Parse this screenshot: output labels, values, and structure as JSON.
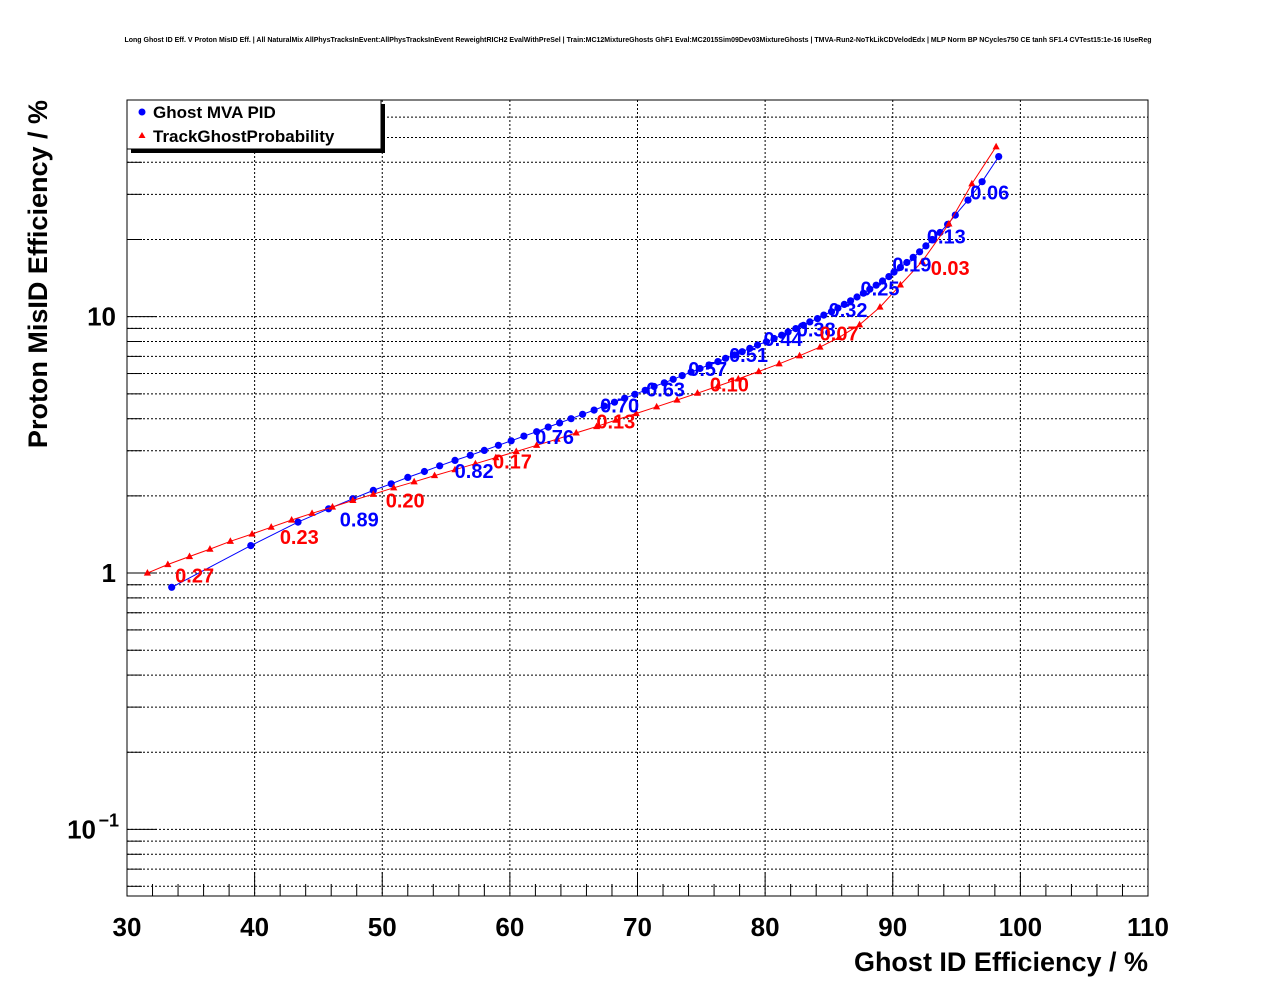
{
  "page": {
    "title": "Long Ghost ID Eff. V Proton MisID Eff. | All NaturalMix AllPhysTracksInEvent:AllPhysTracksInEvent ReweightRICH2 EvalWithPreSel | Train:MC12MixtureGhosts GhF1 Eval:MC2015Sim09Dev03MixtureGhosts | TMVA-Run2-NoTkLikCDVelodEdx | MLP Norm BP NCycles750 CE tanh SF1.4 CVTest15:1e-16 !UseReg"
  },
  "chart_data": {
    "type": "scatter",
    "title": "Long Ghost ID Eff. V Proton MisID Eff. | All NaturalMix AllPhysTracksInEvent:AllPhysTracksInEvent ReweightRICH2 EvalWithPreSel | Train:MC12MixtureGhosts GhF1 Eval:MC2015Sim09Dev03MixtureGhosts | TMVA-Run2-NoTkLikCDVelodEdx | MLP Norm BP NCycles750 CE tanh SF1.4 CVTest15:1e-16 !UseReg",
    "xlabel": "Ghost ID Efficiency / %",
    "ylabel": "Proton MisID Efficiency / %",
    "xlim": [
      30,
      110
    ],
    "ylim": [
      0.055,
      70
    ],
    "yscale": "log",
    "grid": true,
    "legend_position": "top-left",
    "x_ticks": [
      "30",
      "40",
      "50",
      "60",
      "70",
      "80",
      "90",
      "100",
      "110"
    ],
    "y_ticks": [
      {
        "base": "10",
        "exp": "−1"
      },
      {
        "base": "1",
        "exp": ""
      },
      {
        "base": "10",
        "exp": ""
      }
    ],
    "series": [
      {
        "name": "Ghost MVA PID",
        "color": "#0000ff",
        "marker": "circle",
        "x": [
          33.5,
          39.7,
          43.4,
          45.8,
          47.7,
          49.3,
          50.7,
          52.0,
          53.3,
          54.5,
          55.7,
          56.9,
          58.0,
          59.1,
          60.1,
          61.1,
          62.1,
          63.0,
          63.9,
          64.8,
          65.7,
          66.6,
          67.4,
          68.2,
          69.0,
          69.8,
          70.6,
          71.3,
          72.1,
          72.8,
          73.5,
          74.2,
          74.9,
          75.6,
          76.3,
          76.9,
          77.6,
          78.2,
          78.8,
          79.4,
          80.1,
          80.7,
          81.3,
          81.8,
          82.4,
          83.0,
          83.5,
          84.1,
          84.6,
          85.2,
          85.7,
          86.2,
          86.7,
          87.2,
          87.7,
          88.2,
          88.7,
          89.2,
          89.7,
          90.1,
          90.6,
          91.1,
          91.6,
          92.1,
          92.6,
          93.1,
          93.7,
          94.3,
          94.9,
          95.9,
          97.0,
          98.3
        ],
        "y": [
          0.88,
          1.28,
          1.58,
          1.78,
          1.95,
          2.1,
          2.23,
          2.36,
          2.49,
          2.62,
          2.75,
          2.88,
          3.01,
          3.15,
          3.28,
          3.42,
          3.56,
          3.71,
          3.85,
          4.0,
          4.16,
          4.32,
          4.48,
          4.64,
          4.81,
          4.98,
          5.16,
          5.34,
          5.52,
          5.7,
          5.89,
          6.08,
          6.28,
          6.48,
          6.68,
          6.88,
          7.09,
          7.3,
          7.52,
          7.75,
          7.98,
          8.22,
          8.47,
          8.72,
          8.98,
          9.25,
          9.54,
          9.83,
          10.14,
          10.46,
          10.8,
          11.16,
          11.53,
          11.93,
          12.35,
          12.8,
          13.27,
          13.78,
          14.33,
          14.92,
          15.56,
          16.27,
          17.04,
          17.9,
          18.88,
          19.99,
          21.3,
          22.9,
          24.9,
          28.5,
          33.6,
          42.1
        ],
        "labels": [
          {
            "text": "0.89",
            "x": 48.2,
            "y": 1.62
          },
          {
            "text": "0.82",
            "x": 57.2,
            "y": 2.5
          },
          {
            "text": "0.76",
            "x": 63.5,
            "y": 3.4
          },
          {
            "text": "0.70",
            "x": 68.6,
            "y": 4.5
          },
          {
            "text": "0.63",
            "x": 72.2,
            "y": 5.2
          },
          {
            "text": "0.57",
            "x": 75.5,
            "y": 6.25
          },
          {
            "text": "0.51",
            "x": 78.7,
            "y": 7.1
          },
          {
            "text": "0.44",
            "x": 81.4,
            "y": 8.2
          },
          {
            "text": "0.38",
            "x": 84.0,
            "y": 8.9
          },
          {
            "text": "0.32",
            "x": 86.5,
            "y": 10.6
          },
          {
            "text": "0.25",
            "x": 89.0,
            "y": 12.9
          },
          {
            "text": "0.19",
            "x": 91.5,
            "y": 16.0
          },
          {
            "text": "0.13",
            "x": 94.2,
            "y": 20.5
          },
          {
            "text": "0.06",
            "x": 97.6,
            "y": 30.5
          }
        ]
      },
      {
        "name": "TrackGhostProbability",
        "color": "#ff0000",
        "marker": "triangle",
        "x": [
          31.6,
          33.2,
          34.9,
          36.5,
          38.1,
          39.8,
          41.3,
          42.9,
          44.5,
          46.1,
          47.7,
          49.3,
          50.9,
          52.5,
          54.1,
          55.7,
          57.3,
          58.9,
          60.5,
          62.1,
          63.7,
          65.2,
          66.8,
          68.3,
          69.9,
          71.5,
          73.1,
          74.7,
          76.3,
          77.9,
          79.5,
          81.1,
          82.7,
          84.3,
          85.8,
          87.4,
          89.0,
          90.6,
          92.3,
          94.4,
          96.2,
          98.1
        ],
        "y": [
          1.0,
          1.08,
          1.16,
          1.24,
          1.33,
          1.42,
          1.51,
          1.61,
          1.71,
          1.81,
          1.92,
          2.03,
          2.15,
          2.27,
          2.4,
          2.53,
          2.67,
          2.82,
          2.98,
          3.15,
          3.33,
          3.52,
          3.73,
          3.95,
          4.19,
          4.45,
          4.73,
          5.03,
          5.36,
          5.72,
          6.11,
          6.55,
          7.04,
          7.61,
          8.3,
          9.3,
          10.9,
          13.3,
          16.4,
          23.0,
          33.0,
          46.0
        ],
        "labels": [
          {
            "text": "0.27",
            "x": 35.3,
            "y": 0.98
          },
          {
            "text": "0.23",
            "x": 43.5,
            "y": 1.38
          },
          {
            "text": "0.20",
            "x": 51.8,
            "y": 1.92
          },
          {
            "text": "0.17",
            "x": 60.2,
            "y": 2.72
          },
          {
            "text": "0.13",
            "x": 68.3,
            "y": 3.9
          },
          {
            "text": "0.10",
            "x": 77.2,
            "y": 5.45
          },
          {
            "text": "0.07",
            "x": 85.8,
            "y": 8.6
          },
          {
            "text": "0.03",
            "x": 94.5,
            "y": 15.5
          }
        ]
      }
    ]
  }
}
